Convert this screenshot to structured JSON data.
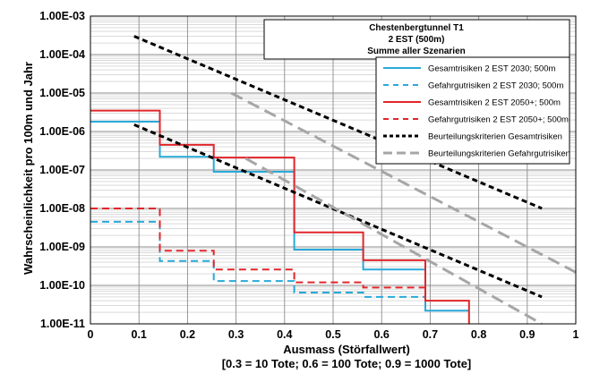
{
  "chart_data": {
    "type": "line",
    "title": [
      "Chestenbergtunnel T1",
      "2 EST (500m)",
      "Summe aller Szenarien"
    ],
    "xlabel": [
      "Ausmass (Störfallwert)",
      "[0.3 = 10 Tote; 0.6 = 100 Tote; 0.9 = 1000 Tote]"
    ],
    "ylabel": "Wahrscheinlichkeit pro 100m und Jahr",
    "x_scale": "linear",
    "y_scale": "log",
    "xlim": [
      0,
      1
    ],
    "ylim": [
      1e-11,
      0.001
    ],
    "grid": true,
    "legend_position": "top-right",
    "x_ticks": [
      "0",
      "0.1",
      "0.2",
      "0.3",
      "0.4",
      "0.5",
      "0.6",
      "0.7",
      "0.8",
      "0.9",
      "1"
    ],
    "y_ticks": [
      "1.00E-03",
      "1.00E-04",
      "1.00E-05",
      "1.00E-06",
      "1.00E-07",
      "1.00E-08",
      "1.00E-09",
      "1.00E-10",
      "1.00E-11"
    ],
    "series": [
      {
        "name": "Gesamtrisiken 2 EST 2030; 500m",
        "color": "#29a9d9",
        "style": "solid",
        "step": true,
        "x": [
          0,
          0.143,
          0.143,
          0.254,
          0.254,
          0.42,
          0.42,
          0.562,
          0.562,
          0.69,
          0.69,
          0.78
        ],
        "y": [
          1.8e-06,
          1.8e-06,
          2.2e-07,
          2.2e-07,
          9e-08,
          9e-08,
          8.5e-10,
          8.5e-10,
          2.6e-10,
          2.6e-10,
          2.2e-11,
          2.2e-11
        ]
      },
      {
        "name": "Gefahrgutrisiken 2 EST 2030; 500m",
        "color": "#29a9d9",
        "style": "dashed",
        "step": true,
        "x": [
          0,
          0.143,
          0.143,
          0.254,
          0.254,
          0.42,
          0.42,
          0.562,
          0.562,
          0.69
        ],
        "y": [
          4.5e-09,
          4.5e-09,
          4.3e-10,
          4.3e-10,
          1.3e-10,
          1.3e-10,
          6.5e-11,
          6.5e-11,
          5e-11,
          5e-11
        ]
      },
      {
        "name": "Gesamtrisiken 2 EST 2050+; 500m",
        "color": "#e0262a",
        "style": "solid",
        "step": true,
        "x": [
          0,
          0.143,
          0.143,
          0.254,
          0.254,
          0.42,
          0.42,
          0.562,
          0.562,
          0.69,
          0.69,
          0.78,
          0.78
        ],
        "y": [
          3.5e-06,
          3.5e-06,
          4.5e-07,
          4.5e-07,
          2.1e-07,
          2.1e-07,
          2.4e-09,
          2.4e-09,
          4.5e-10,
          4.5e-10,
          4e-11,
          4e-11,
          1e-11
        ]
      },
      {
        "name": "Gefahrgutrisiken 2 EST 2050+; 500m",
        "color": "#e0262a",
        "style": "dashed",
        "step": true,
        "x": [
          0,
          0.143,
          0.143,
          0.254,
          0.254,
          0.42,
          0.42,
          0.562,
          0.562,
          0.69
        ],
        "y": [
          1e-08,
          1e-08,
          8e-10,
          8e-10,
          2.6e-10,
          2.6e-10,
          1.2e-10,
          1.2e-10,
          8.8e-11,
          8.8e-11
        ]
      },
      {
        "name": "Beurteilungskriterien Gesamtrisiken",
        "color": "#000000",
        "style": "dashed",
        "step": false,
        "lines": [
          {
            "x": [
              0.09,
              0.93
            ],
            "y": [
              0.0003,
              1e-08
            ]
          },
          {
            "x": [
              0.09,
              0.93
            ],
            "y": [
              1.5e-06,
              5e-11
            ]
          }
        ]
      },
      {
        "name": "Beurteilungskriterien Gefahrgutrisiken",
        "color": "#a6a6a6",
        "style": "dashed",
        "step": false,
        "lines": [
          {
            "x": [
              0.29,
              1.0
            ],
            "y": [
              1e-05,
              2.2e-10
            ]
          },
          {
            "x": [
              0.32,
              0.93
            ],
            "y": [
              2e-07,
              1e-11
            ]
          }
        ]
      }
    ]
  }
}
